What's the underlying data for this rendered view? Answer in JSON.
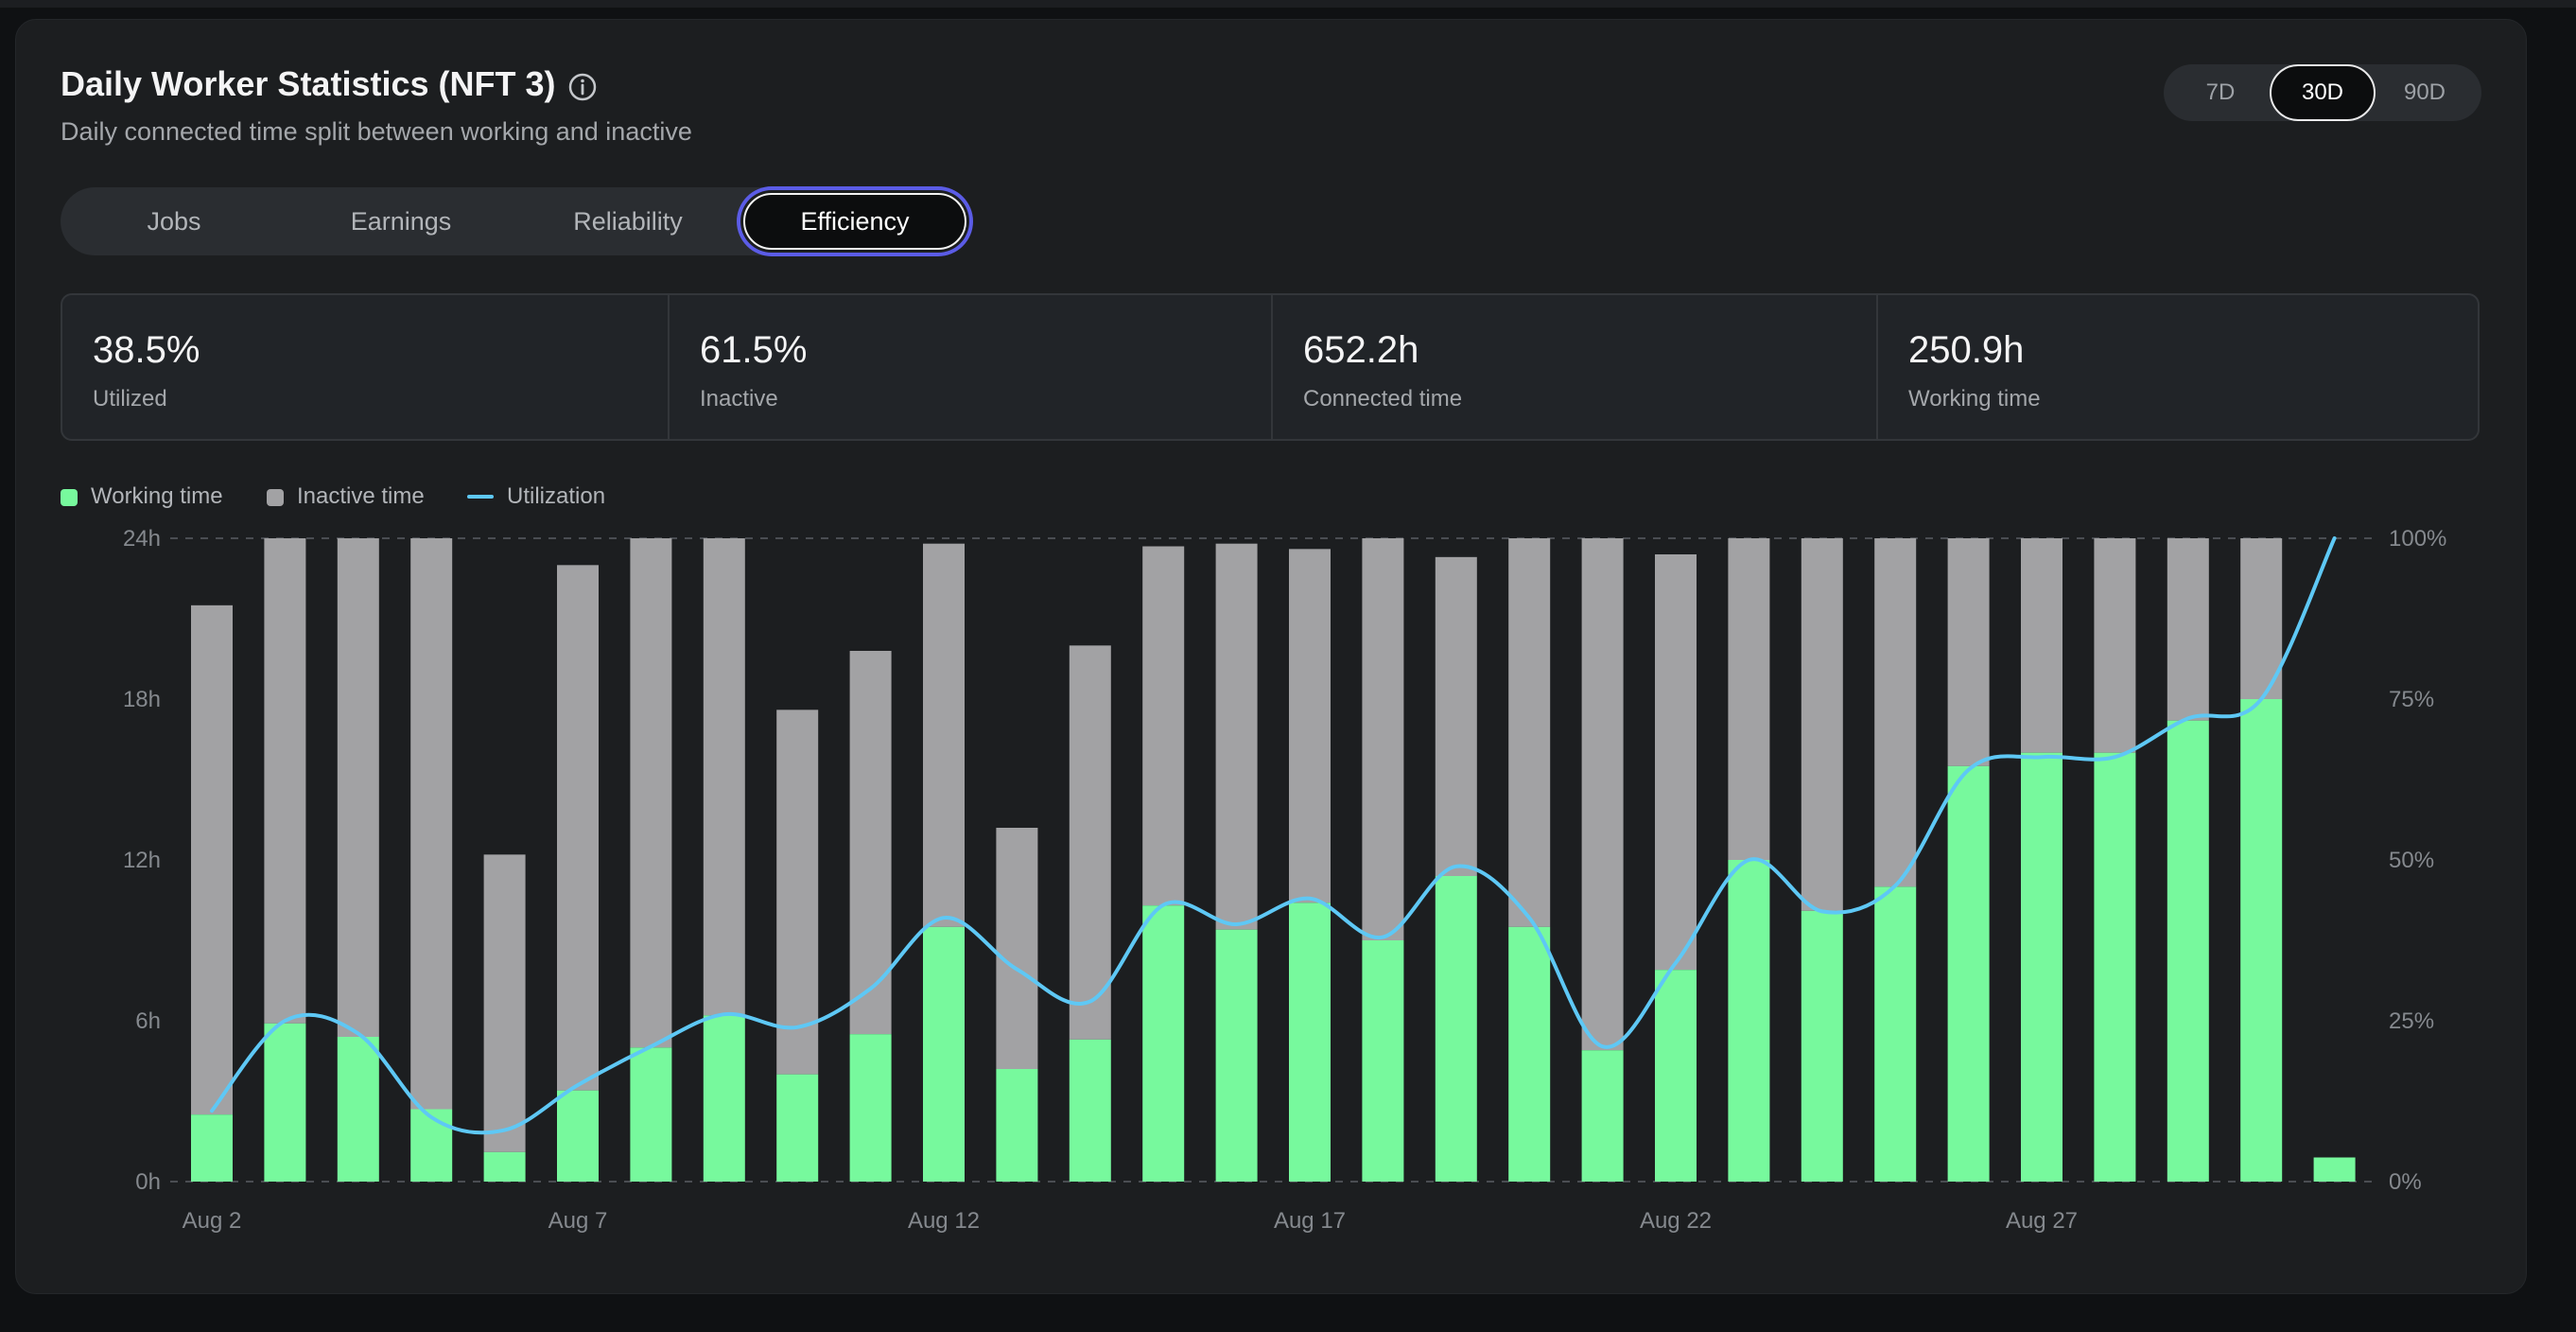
{
  "card": {
    "title": "Daily Worker Statistics (NFT 3)",
    "subtitle": "Daily connected time split between working and inactive",
    "info_icon": "info-circle-icon"
  },
  "range_selector": {
    "options": [
      {
        "label": "7D",
        "active": false
      },
      {
        "label": "30D",
        "active": true
      },
      {
        "label": "90D",
        "active": false
      }
    ]
  },
  "tabs": [
    {
      "label": "Jobs",
      "active": false
    },
    {
      "label": "Earnings",
      "active": false
    },
    {
      "label": "Reliability",
      "active": false
    },
    {
      "label": "Efficiency",
      "active": true
    }
  ],
  "stats": [
    {
      "value": "38.5%",
      "label": "Utilized"
    },
    {
      "value": "61.5%",
      "label": "Inactive"
    },
    {
      "value": "652.2h",
      "label": "Connected time"
    },
    {
      "value": "250.9h",
      "label": "Working time"
    }
  ],
  "legend": [
    {
      "label": "Working time",
      "kind": "square",
      "color": "#77f99d"
    },
    {
      "label": "Inactive time",
      "kind": "square",
      "color": "#a2a2a4"
    },
    {
      "label": "Utilization",
      "kind": "line",
      "color": "#5ec8f5"
    }
  ],
  "colors": {
    "working": "#77f99d",
    "inactive": "#a2a2a4",
    "utilization": "#5ec8f5",
    "accent_focus": "#5b5ce6"
  },
  "chart_data": {
    "type": "bar",
    "stacked": true,
    "categories": [
      "Aug 2",
      "Aug 3",
      "Aug 4",
      "Aug 5",
      "Aug 6",
      "Aug 7",
      "Aug 8",
      "Aug 9",
      "Aug 10",
      "Aug 11",
      "Aug 12",
      "Aug 13",
      "Aug 14",
      "Aug 15",
      "Aug 16",
      "Aug 17",
      "Aug 18",
      "Aug 19",
      "Aug 20",
      "Aug 21",
      "Aug 22",
      "Aug 23",
      "Aug 24",
      "Aug 25",
      "Aug 26",
      "Aug 27",
      "Aug 28",
      "Aug 29",
      "Aug 30",
      "Aug 31"
    ],
    "x_tick_labels": [
      "Aug 2",
      "Aug 7",
      "Aug 12",
      "Aug 17",
      "Aug 22",
      "Aug 27"
    ],
    "series": [
      {
        "name": "Working time",
        "values": [
          2.5,
          5.9,
          5.4,
          2.7,
          1.1,
          3.4,
          5.0,
          6.2,
          4.0,
          5.5,
          9.5,
          4.2,
          5.3,
          10.3,
          9.4,
          10.4,
          9.0,
          11.4,
          9.5,
          4.9,
          7.9,
          12.0,
          10.1,
          11.0,
          15.5,
          16.0,
          16.0,
          17.2,
          18.0,
          0.9
        ]
      },
      {
        "name": "Inactive time",
        "values": [
          19.0,
          18.1,
          18.6,
          21.3,
          11.1,
          19.6,
          19.0,
          17.8,
          13.6,
          14.3,
          14.3,
          9.0,
          14.7,
          13.4,
          14.4,
          13.2,
          15.0,
          11.9,
          14.5,
          19.1,
          15.5,
          12.0,
          13.9,
          13.0,
          8.5,
          8.0,
          8.0,
          6.8,
          6.0,
          0
        ]
      },
      {
        "name": "Utilization",
        "axis": "right",
        "values": [
          11,
          25,
          23,
          10,
          8,
          15,
          21,
          26,
          24,
          30,
          41,
          33,
          28,
          43,
          40,
          44,
          38,
          49,
          41,
          21,
          34,
          50,
          42,
          46,
          64,
          66,
          66,
          72,
          75,
          100
        ]
      }
    ],
    "y_left": {
      "ticks": [
        "0h",
        "6h",
        "12h",
        "18h",
        "24h"
      ],
      "range": [
        0,
        24
      ],
      "unit": "h"
    },
    "y_right": {
      "ticks": [
        "0%",
        "25%",
        "50%",
        "75%",
        "100%"
      ],
      "range": [
        0,
        100
      ],
      "unit": "%"
    },
    "grid": "dashed lines at 0h and 24h",
    "legend_placement": "top-left"
  }
}
